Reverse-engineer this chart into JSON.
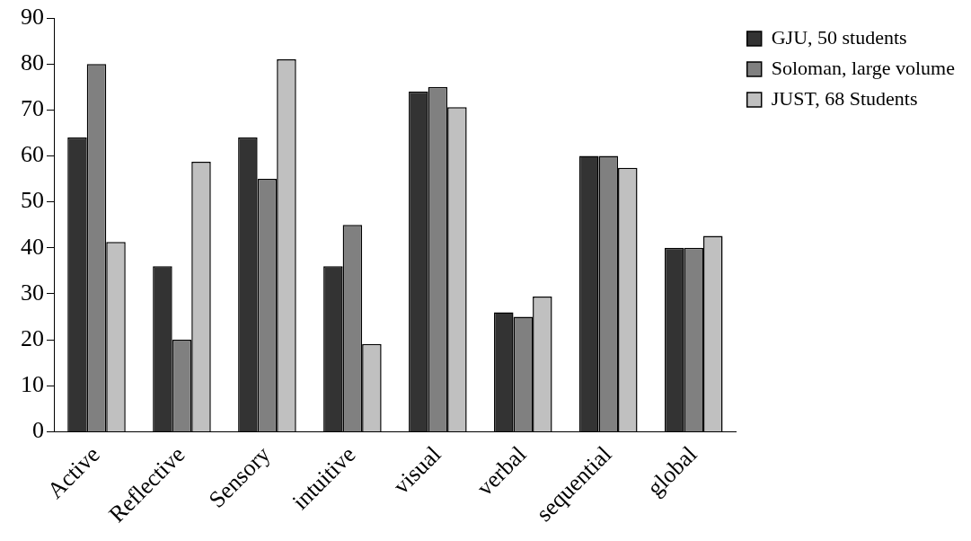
{
  "chart_data": {
    "type": "bar",
    "categories": [
      "Active",
      "Reflective",
      "Sensory",
      "intuitive",
      "visual",
      "verbal",
      "sequential",
      "global"
    ],
    "series": [
      {
        "name": "GJU, 50 students",
        "color": "#333333",
        "values": [
          64,
          36,
          64,
          36,
          74,
          26,
          60,
          40
        ]
      },
      {
        "name": "Soloman, large volume",
        "color": "#808080",
        "values": [
          80,
          20,
          55,
          45,
          75,
          25,
          60,
          40
        ]
      },
      {
        "name": "JUST, 68 Students",
        "color": "#c0c0c0",
        "values": [
          41.3,
          58.7,
          81,
          19.1,
          70.6,
          29.4,
          57.4,
          42.6
        ]
      }
    ],
    "ylim": [
      0,
      90
    ],
    "yticks": [
      0,
      10,
      20,
      30,
      40,
      50,
      60,
      70,
      80,
      90
    ],
    "grid": false,
    "legend": "top right"
  }
}
